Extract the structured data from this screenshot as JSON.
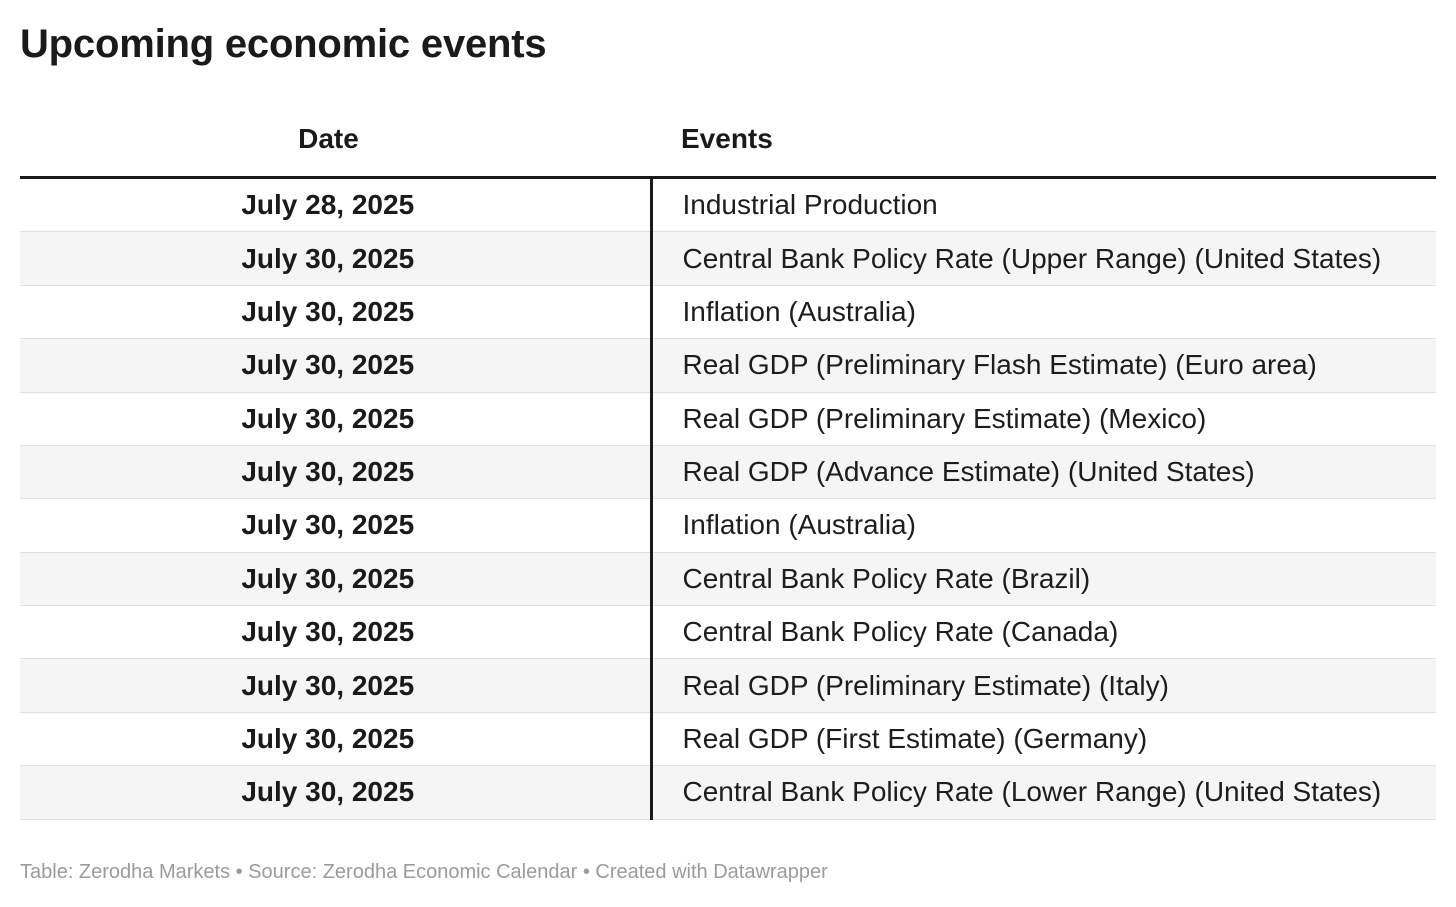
{
  "title": "Upcoming economic events",
  "columns": {
    "date": "Date",
    "events": "Events"
  },
  "rows": [
    {
      "date": "July 28, 2025",
      "event": "Industrial Production"
    },
    {
      "date": "July 30, 2025",
      "event": "Central Bank Policy Rate (Upper Range) (United States)"
    },
    {
      "date": "July 30, 2025",
      "event": "Inflation (Australia)"
    },
    {
      "date": "July 30, 2025",
      "event": "Real GDP (Preliminary Flash Estimate) (Euro area)"
    },
    {
      "date": "July 30, 2025",
      "event": "Real GDP (Preliminary Estimate) (Mexico)"
    },
    {
      "date": "July 30, 2025",
      "event": "Real GDP (Advance Estimate) (United States)"
    },
    {
      "date": "July 30, 2025",
      "event": "Inflation (Australia)"
    },
    {
      "date": "July 30, 2025",
      "event": "Central Bank Policy Rate (Brazil)"
    },
    {
      "date": "July 30, 2025",
      "event": "Central Bank Policy Rate (Canada)"
    },
    {
      "date": "July 30, 2025",
      "event": "Real GDP (Preliminary Estimate) (Italy)"
    },
    {
      "date": "July 30, 2025",
      "event": "Real GDP (First Estimate) (Germany)"
    },
    {
      "date": "July 30, 2025",
      "event": "Central Bank Policy Rate (Lower Range) (United States)"
    }
  ],
  "footer": {
    "text": "Table: Zerodha Markets • Source: Zerodha Economic Calendar • Created with Datawrapper"
  },
  "colors": {
    "text": "#1d1d1d",
    "heading": "#1a1a1a",
    "rule_black": "#1a1a1a",
    "row_stripe": "#f5f5f5",
    "row_separator": "#e0e0e0",
    "footer_text": "#9b9b9b",
    "background": "#ffffff"
  }
}
